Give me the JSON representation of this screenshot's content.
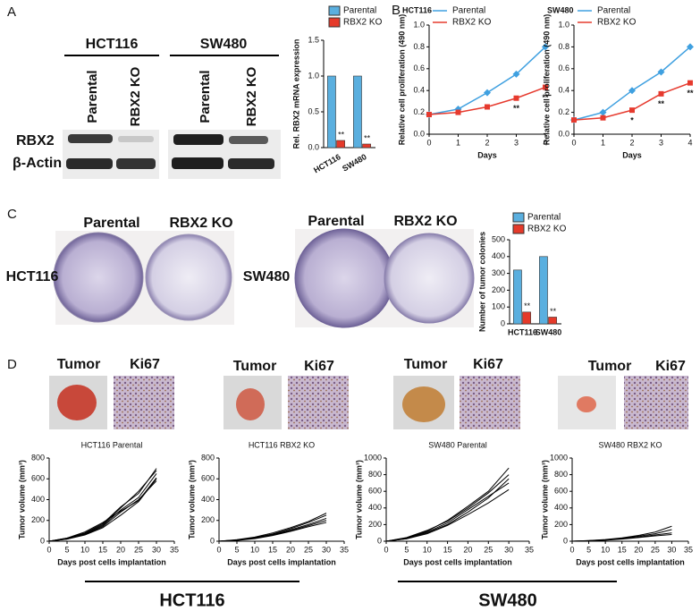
{
  "figure": {
    "panel_labels": [
      "A",
      "B",
      "C",
      "D"
    ],
    "blot": {
      "cell_lines": [
        "HCT116",
        "SW480"
      ],
      "lanes": [
        "Parental",
        "RBX2 KO",
        "Parental",
        "RBX2 KO"
      ],
      "proteins": [
        "RBX2",
        "β-Actin"
      ]
    },
    "colony": {
      "columns": [
        "Parental",
        "RBX2 KO",
        "Parental",
        "RBX2 KO"
      ],
      "cell_lines": [
        "HCT116",
        "SW480"
      ]
    },
    "xenograft": {
      "image_labels": [
        "Tumor",
        "Ki67",
        "Tumor",
        "Ki67",
        "Tumor",
        "Ki67",
        "Tumor",
        "Ki67"
      ],
      "cell_lines": [
        "HCT116",
        "SW480"
      ]
    }
  },
  "chart_data": [
    {
      "type": "bar",
      "y_label": "Rel. RBX2 mRNA expression",
      "categories": [
        "HCT116",
        "SW480"
      ],
      "series": [
        {
          "name": "Parental",
          "color": "#5aafdf",
          "values": [
            1,
            1
          ]
        },
        {
          "name": "RBX2 KO",
          "color": "#e53a2a",
          "values": [
            0.1,
            0.05
          ],
          "annotations": [
            "**",
            "**"
          ]
        }
      ],
      "ylim": [
        0,
        1.5
      ],
      "yticks": [
        {
          "value": 0,
          "label": "0.0"
        },
        {
          "value": 0.5,
          "label": "0.5"
        },
        {
          "value": 1,
          "label": "1.0"
        },
        {
          "value": 1.5,
          "label": "1.5"
        }
      ]
    },
    {
      "type": "line",
      "title": "HCT116",
      "x_label": "Days",
      "y_label": "Relative cell proliferation (490 nm)",
      "x": [
        0,
        1,
        2,
        3,
        4
      ],
      "series": [
        {
          "name": "Parental",
          "color": "#3fa0e0",
          "marker": "diamond",
          "values": [
            0.18,
            0.23,
            0.38,
            0.55,
            0.8
          ]
        },
        {
          "name": "RBX2 KO",
          "color": "#e63a2e",
          "marker": "square",
          "values": [
            0.18,
            0.2,
            0.25,
            0.33,
            0.43
          ],
          "annotations": [
            null,
            null,
            null,
            "**",
            "**"
          ]
        }
      ],
      "xlim": [
        0,
        4
      ],
      "xticks": [
        0,
        1,
        2,
        3,
        4
      ],
      "ylim": [
        0,
        1
      ],
      "yticks": [
        {
          "value": 0,
          "label": "0.0"
        },
        {
          "value": 0.2,
          "label": "0.2"
        },
        {
          "value": 0.4,
          "label": "0.4"
        },
        {
          "value": 0.6,
          "label": "0.6"
        },
        {
          "value": 0.8,
          "label": "0.8"
        },
        {
          "value": 1,
          "label": "1.0"
        }
      ]
    },
    {
      "type": "line",
      "title": "SW480",
      "x_label": "Days",
      "y_label": "Relative cell proliferation (490 nm)",
      "x": [
        0,
        1,
        2,
        3,
        4
      ],
      "series": [
        {
          "name": "Parental",
          "color": "#3fa0e0",
          "marker": "diamond",
          "values": [
            0.13,
            0.2,
            0.4,
            0.57,
            0.8
          ]
        },
        {
          "name": "RBX2 KO",
          "color": "#e63a2e",
          "marker": "square",
          "values": [
            0.13,
            0.15,
            0.22,
            0.37,
            0.47
          ],
          "annotations": [
            null,
            null,
            "*",
            "**",
            "**"
          ]
        }
      ],
      "xlim": [
        0,
        4
      ],
      "xticks": [
        0,
        1,
        2,
        3,
        4
      ],
      "ylim": [
        0,
        1
      ],
      "yticks": [
        {
          "value": 0,
          "label": "0.0"
        },
        {
          "value": 0.2,
          "label": "0.2"
        },
        {
          "value": 0.4,
          "label": "0.4"
        },
        {
          "value": 0.6,
          "label": "0.6"
        },
        {
          "value": 0.8,
          "label": "0.8"
        },
        {
          "value": 1,
          "label": "1.0"
        }
      ]
    },
    {
      "type": "bar",
      "y_label": "Number of tumor colonies",
      "categories": [
        "HCT116",
        "SW480"
      ],
      "series": [
        {
          "name": "Parental",
          "color": "#5aafdf",
          "values": [
            320,
            400
          ]
        },
        {
          "name": "RBX2 KO",
          "color": "#e53a2a",
          "values": [
            70,
            40
          ],
          "annotations": [
            "**",
            "**"
          ]
        }
      ],
      "ylim": [
        0,
        500
      ],
      "yticks": [
        0,
        100,
        200,
        300,
        400,
        500
      ]
    },
    {
      "type": "line",
      "title": "HCT116 Parental",
      "x_label": "Days post cells implantation",
      "y_label": "Tumor volume (mm³)",
      "x": [
        0,
        5,
        10,
        15,
        20,
        25,
        30
      ],
      "series": [
        {
          "color": "#000000",
          "values": [
            0,
            20,
            60,
            130,
            250,
            380,
            600
          ]
        },
        {
          "color": "#000000",
          "values": [
            0,
            25,
            70,
            150,
            300,
            420,
            650
          ]
        },
        {
          "color": "#000000",
          "values": [
            0,
            30,
            80,
            170,
            330,
            460,
            700
          ]
        },
        {
          "color": "#000000",
          "values": [
            0,
            20,
            65,
            140,
            280,
            400,
            580
          ]
        },
        {
          "color": "#000000",
          "values": [
            0,
            25,
            75,
            160,
            320,
            480,
            680
          ]
        },
        {
          "color": "#000000",
          "values": [
            0,
            30,
            90,
            180,
            290,
            390,
            610
          ]
        }
      ],
      "xlim": [
        0,
        35
      ],
      "xticks": [
        0,
        5,
        10,
        15,
        20,
        25,
        30,
        35
      ],
      "ylim": [
        0,
        800
      ],
      "yticks": [
        0,
        200,
        400,
        600,
        800
      ]
    },
    {
      "type": "line",
      "title": "HCT116 RBX2 KO",
      "x_label": "Days post cells implantation",
      "y_label": "Tumor volume (mm³)",
      "x": [
        0,
        5,
        10,
        15,
        20,
        25,
        30
      ],
      "series": [
        {
          "color": "#000000",
          "values": [
            0,
            10,
            30,
            60,
            100,
            150,
            200
          ]
        },
        {
          "color": "#000000",
          "values": [
            0,
            12,
            35,
            70,
            120,
            180,
            250
          ]
        },
        {
          "color": "#000000",
          "values": [
            0,
            8,
            25,
            55,
            95,
            140,
            180
          ]
        },
        {
          "color": "#000000",
          "values": [
            0,
            15,
            40,
            80,
            130,
            190,
            270
          ]
        },
        {
          "color": "#000000",
          "values": [
            0,
            10,
            30,
            65,
            110,
            160,
            220
          ]
        }
      ],
      "xlim": [
        0,
        35
      ],
      "xticks": [
        0,
        5,
        10,
        15,
        20,
        25,
        30,
        35
      ],
      "ylim": [
        0,
        800
      ],
      "yticks": [
        0,
        200,
        400,
        600,
        800
      ]
    },
    {
      "type": "line",
      "title": "SW480 Parental",
      "x_label": "Days post cells implantation",
      "y_label": "Tumor volume (mm³)",
      "x": [
        0,
        5,
        10,
        15,
        20,
        25,
        30
      ],
      "series": [
        {
          "color": "#000000",
          "values": [
            0,
            30,
            100,
            200,
            350,
            520,
            750
          ]
        },
        {
          "color": "#000000",
          "values": [
            0,
            40,
            120,
            250,
            420,
            600,
            880
          ]
        },
        {
          "color": "#000000",
          "values": [
            0,
            35,
            110,
            220,
            380,
            540,
            700
          ]
        },
        {
          "color": "#000000",
          "values": [
            0,
            30,
            90,
            190,
            320,
            460,
            620
          ]
        },
        {
          "color": "#000000",
          "values": [
            0,
            45,
            130,
            240,
            400,
            580,
            800
          ]
        }
      ],
      "xlim": [
        0,
        35
      ],
      "xticks": [
        0,
        5,
        10,
        15,
        20,
        25,
        30,
        35
      ],
      "ylim": [
        0,
        1000
      ],
      "yticks": [
        0,
        200,
        400,
        600,
        800,
        1000
      ]
    },
    {
      "type": "line",
      "title": "SW480 RBX2 KO",
      "x_label": "Days post cells implantation",
      "y_label": "Tumor volume (mm³)",
      "x": [
        0,
        5,
        10,
        15,
        20,
        25,
        30
      ],
      "series": [
        {
          "color": "#000000",
          "values": [
            0,
            8,
            20,
            40,
            70,
            110,
            180
          ]
        },
        {
          "color": "#000000",
          "values": [
            0,
            6,
            15,
            30,
            50,
            75,
            100
          ]
        },
        {
          "color": "#000000",
          "values": [
            0,
            5,
            12,
            25,
            45,
            65,
            80
          ]
        },
        {
          "color": "#000000",
          "values": [
            0,
            7,
            18,
            35,
            60,
            90,
            140
          ]
        }
      ],
      "xlim": [
        0,
        35
      ],
      "xticks": [
        0,
        5,
        10,
        15,
        20,
        25,
        30,
        35
      ],
      "ylim": [
        0,
        1000
      ],
      "yticks": [
        0,
        200,
        400,
        600,
        800,
        1000
      ]
    }
  ]
}
